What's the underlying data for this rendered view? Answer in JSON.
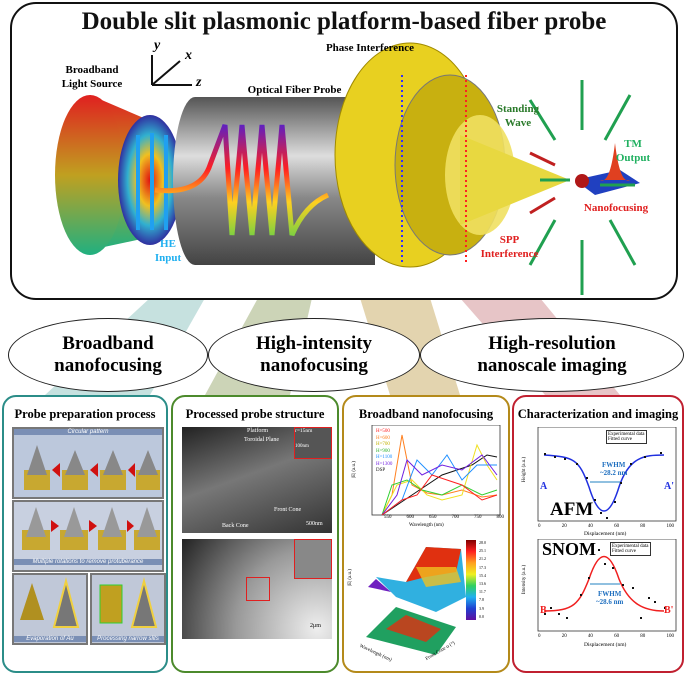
{
  "title": "Double slit plasmonic platform-based fiber probe",
  "top": {
    "axes": {
      "y": "y",
      "x": "x",
      "z": "z"
    },
    "light_source": "Broadband Light Source",
    "fiber_probe": "Optical Fiber Probe",
    "phase_interference": "Phase Interference",
    "standing_wave": "Standing Wave",
    "tm_output": "TM Output",
    "he_input": "HE Input",
    "nanofocusing": "Nanofocusing",
    "spp_interference": "SPP Interference"
  },
  "ovals": [
    {
      "line1": "Broadband",
      "line2": "nanofocusing"
    },
    {
      "line1": "High-intensity",
      "line2": "nanofocusing"
    },
    {
      "line1": "High-resolution",
      "line2": "nanoscale imaging"
    }
  ],
  "panels": {
    "prep": {
      "title": "Probe preparation process",
      "step1": "Circular pattern",
      "step2": "Multiple rotations to remove protuberance",
      "step3": "Evaporation of Au",
      "step4": "Processing narrow slits"
    },
    "structure": {
      "title": "Processed probe structure",
      "platform": "Platform",
      "toroidal": "Toroidal Plane",
      "r": "r=15nm",
      "inset_scale": "100nm",
      "front": "Front Cone",
      "back": "Back Cone",
      "scale1": "500nm",
      "scale2": "2μm"
    },
    "broadband": {
      "title": "Broadband nanofocusing",
      "xlabel": "Wavelength (nm)",
      "ylabel": "|E| (a.u.)",
      "xticks": [
        "550",
        "600",
        "650",
        "700",
        "750",
        "800"
      ],
      "yticks": [
        "0",
        "5",
        "10",
        "15",
        "20",
        "25",
        "30",
        "35",
        "40"
      ],
      "legend": [
        "H=500",
        "H=600",
        "H=700",
        "H=900",
        "H=1100",
        "H=1300",
        "DSP"
      ],
      "colors": [
        "#ff2020",
        "#ff8020",
        "#f0e020",
        "#30d030",
        "#2090ff",
        "#7020e0",
        "#111111"
      ],
      "plot3d_xlabel": "Wavelength (nm)",
      "plot3d_ylabel": "Front Cone α (°)",
      "plot3d_zlabel": "|E| (a.u.)",
      "colorbar": [
        "28.0",
        "25.1",
        "21.2",
        "17.3",
        "15.4",
        "13.6",
        "11.7",
        "7.8",
        "3.9",
        "0.0"
      ]
    },
    "imaging": {
      "title": "Characterization and imaging",
      "afm": {
        "label": "AFM",
        "legend": [
          "Experimental data",
          "Fitted curve"
        ],
        "fwhm": "FWHM",
        "value": "~28.2 nm",
        "a": "A",
        "a2": "A'",
        "ylabel": "Height (a.u.)",
        "xlabel": "Displacement (nm)",
        "xticks": [
          "0",
          "20",
          "40",
          "60",
          "80",
          "100"
        ]
      },
      "snom": {
        "label": "SNOM",
        "legend": [
          "Experimental data",
          "Fitted curve"
        ],
        "fwhm": "FWHM",
        "value": "~28.6 nm",
        "b": "B",
        "b2": "B'",
        "ylabel": "Intensity (a.u.)",
        "xlabel": "Displacement (nm)",
        "xticks": [
          "0",
          "20",
          "40",
          "60",
          "80",
          "100"
        ]
      }
    }
  }
}
